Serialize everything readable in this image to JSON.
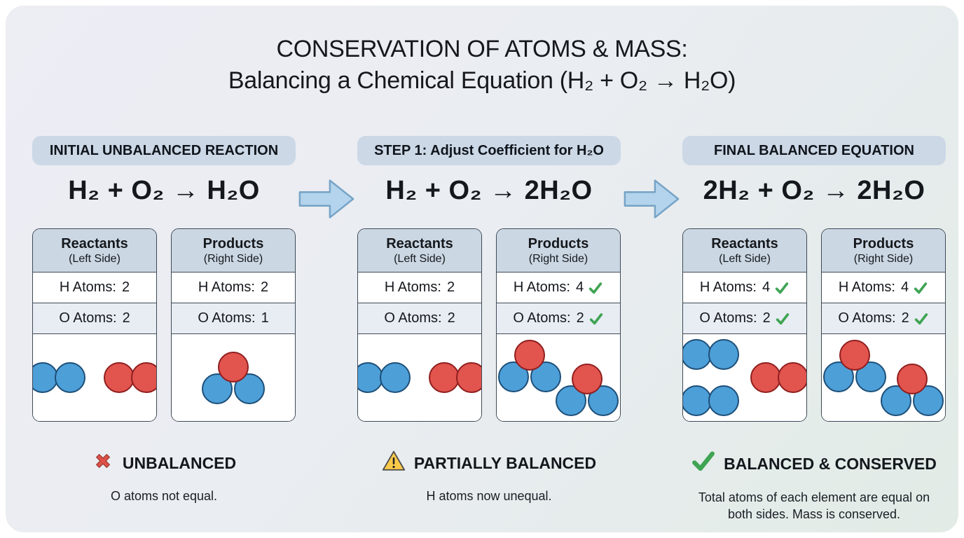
{
  "title": {
    "line1": "CONSERVATION OF ATOMS & MASS:",
    "line2": "Balancing a Chemical Equation (H₂ + O₂ → H₂O)"
  },
  "colors": {
    "background_gradient_start": "#ededf4",
    "background_gradient_end": "#e2ebe6",
    "pill_background": "#ccd8e6",
    "card_header_background": "#cbd7e3",
    "card_alt_row_background": "#e8edf3",
    "card_border": "#3f4a56",
    "atom_blue": "#4d9fd8",
    "atom_blue_border": "#1d4f78",
    "atom_red": "#e2544e",
    "atom_red_border": "#8f1f1e",
    "check_green": "#3fa454",
    "cross_red": "#dd5148",
    "warning_yellow": "#f8c94a",
    "arrow_blue": "#b3d4ec",
    "arrow_border": "#76a3c6"
  },
  "panels": [
    {
      "header": "INITIAL UNBALANCED REACTION",
      "equation": "H₂ + O₂ → H₂O",
      "reactants": {
        "title": "Reactants",
        "subtitle": "(Left Side)",
        "rows": [
          {
            "label": "H Atoms:",
            "value": "2",
            "check": false
          },
          {
            "label": "O Atoms:",
            "value": "2",
            "check": false
          }
        ],
        "molecules": [
          "H2",
          "O2"
        ],
        "arrangement": "row"
      },
      "products": {
        "title": "Products",
        "subtitle": "(Right Side)",
        "rows": [
          {
            "label": "H Atoms:",
            "value": "2",
            "check": false
          },
          {
            "label": "O Atoms:",
            "value": "1",
            "check": false
          }
        ],
        "molecules": [
          "H2O"
        ],
        "arrangement": "row"
      },
      "status": {
        "icon": "red-cross-icon",
        "label": "UNBALANCED",
        "caption": "O atoms not equal."
      }
    },
    {
      "header": "STEP 1: Adjust Coefficient for H₂O",
      "equation": "H₂ + O₂ → 2H₂O",
      "reactants": {
        "title": "Reactants",
        "subtitle": "(Left Side)",
        "rows": [
          {
            "label": "H Atoms:",
            "value": "2",
            "check": false
          },
          {
            "label": "O Atoms:",
            "value": "2",
            "check": false
          }
        ],
        "molecules": [
          "H2",
          "O2"
        ],
        "arrangement": "row"
      },
      "products": {
        "title": "Products",
        "subtitle": "(Right Side)",
        "rows": [
          {
            "label": "H Atoms:",
            "value": "4",
            "check": true
          },
          {
            "label": "O Atoms:",
            "value": "2",
            "check": true
          }
        ],
        "molecules": [
          "H2O",
          "H2O"
        ],
        "arrangement": "stagger"
      },
      "status": {
        "icon": "warning-triangle-icon",
        "label": "PARTIALLY BALANCED",
        "caption": "H atoms now unequal."
      }
    },
    {
      "header": "FINAL BALANCED EQUATION",
      "equation": "2H₂ + O₂ → 2H₂O",
      "reactants": {
        "title": "Reactants",
        "subtitle": "(Left Side)",
        "rows": [
          {
            "label": "H Atoms:",
            "value": "4",
            "check": true
          },
          {
            "label": "O Atoms:",
            "value": "2",
            "check": true
          }
        ],
        "molecules": [
          "H2",
          "H2",
          "O2"
        ],
        "arrangement": "stack"
      },
      "products": {
        "title": "Products",
        "subtitle": "(Right Side)",
        "rows": [
          {
            "label": "H Atoms:",
            "value": "4",
            "check": true
          },
          {
            "label": "O Atoms:",
            "value": "2",
            "check": true
          }
        ],
        "molecules": [
          "H2O",
          "H2O"
        ],
        "arrangement": "stagger"
      },
      "status": {
        "icon": "green-check-icon",
        "label": "BALANCED & CONSERVED",
        "caption": "Total atoms of each element are equal on both sides. Mass is conserved."
      }
    }
  ]
}
